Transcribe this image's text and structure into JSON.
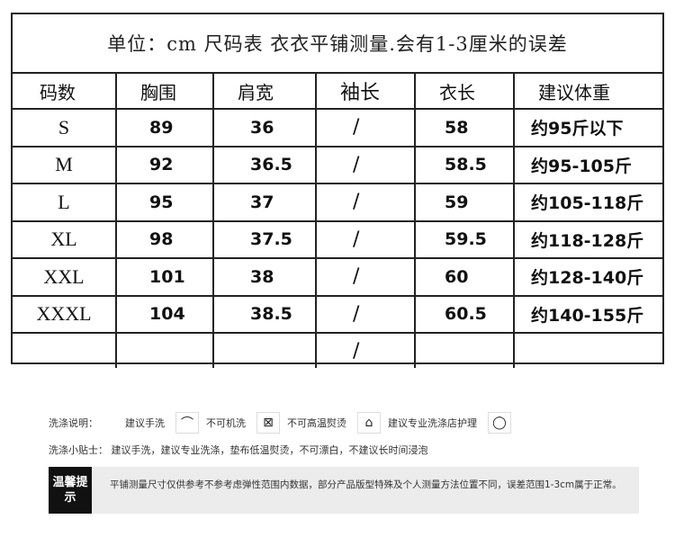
{
  "table": {
    "title": "单位：cm   尺码表   衣衣平铺测量.会有1-3厘米的误差",
    "headers": [
      "码数",
      "胸围",
      "肩宽",
      "袖长",
      "衣长",
      "建议体重"
    ],
    "rows": [
      [
        "S",
        "89",
        "36",
        "/",
        "58",
        "约95斤以下"
      ],
      [
        "M",
        "92",
        "36.5",
        "/",
        "58.5",
        "约95-105斤"
      ],
      [
        "L",
        "95",
        "37",
        "/",
        "59",
        "约105-118斤"
      ],
      [
        "XL",
        "98",
        "37.5",
        "/",
        "59.5",
        "约118-128斤"
      ],
      [
        "XXL",
        "101",
        "38",
        "/",
        "60",
        "约128-140斤"
      ],
      [
        "XXXL",
        "104",
        "38.5",
        "/",
        "60.5",
        "约140-155斤"
      ],
      [
        "",
        "",
        "",
        "/",
        "",
        ""
      ]
    ]
  },
  "care": {
    "label": "洗涤说明：",
    "items": [
      {
        "text": "建议手洗",
        "icon": "hand-wash-icon",
        "glyph": "⌒"
      },
      {
        "text": "不可机洗",
        "icon": "no-machine-wash-icon",
        "glyph": "⊠"
      },
      {
        "text": "不可高温熨烫",
        "icon": "low-iron-icon",
        "glyph": "⌂"
      },
      {
        "text": "建议专业洗涤店护理",
        "icon": "dry-clean-icon",
        "glyph": "◯"
      }
    ]
  },
  "tips": {
    "label": "洗涤小贴士：",
    "text": "建议手洗，建议专业洗涤，垫布低温熨烫，不可漂白，不建议长时间浸泡"
  },
  "note": {
    "label": "温馨提示",
    "text": "平铺测量尺寸仅供参考不参考虑弹性范围内数据，部分产品版型特殊及个人测量方法位置不同，误差范围1-3cm属于正常。"
  }
}
